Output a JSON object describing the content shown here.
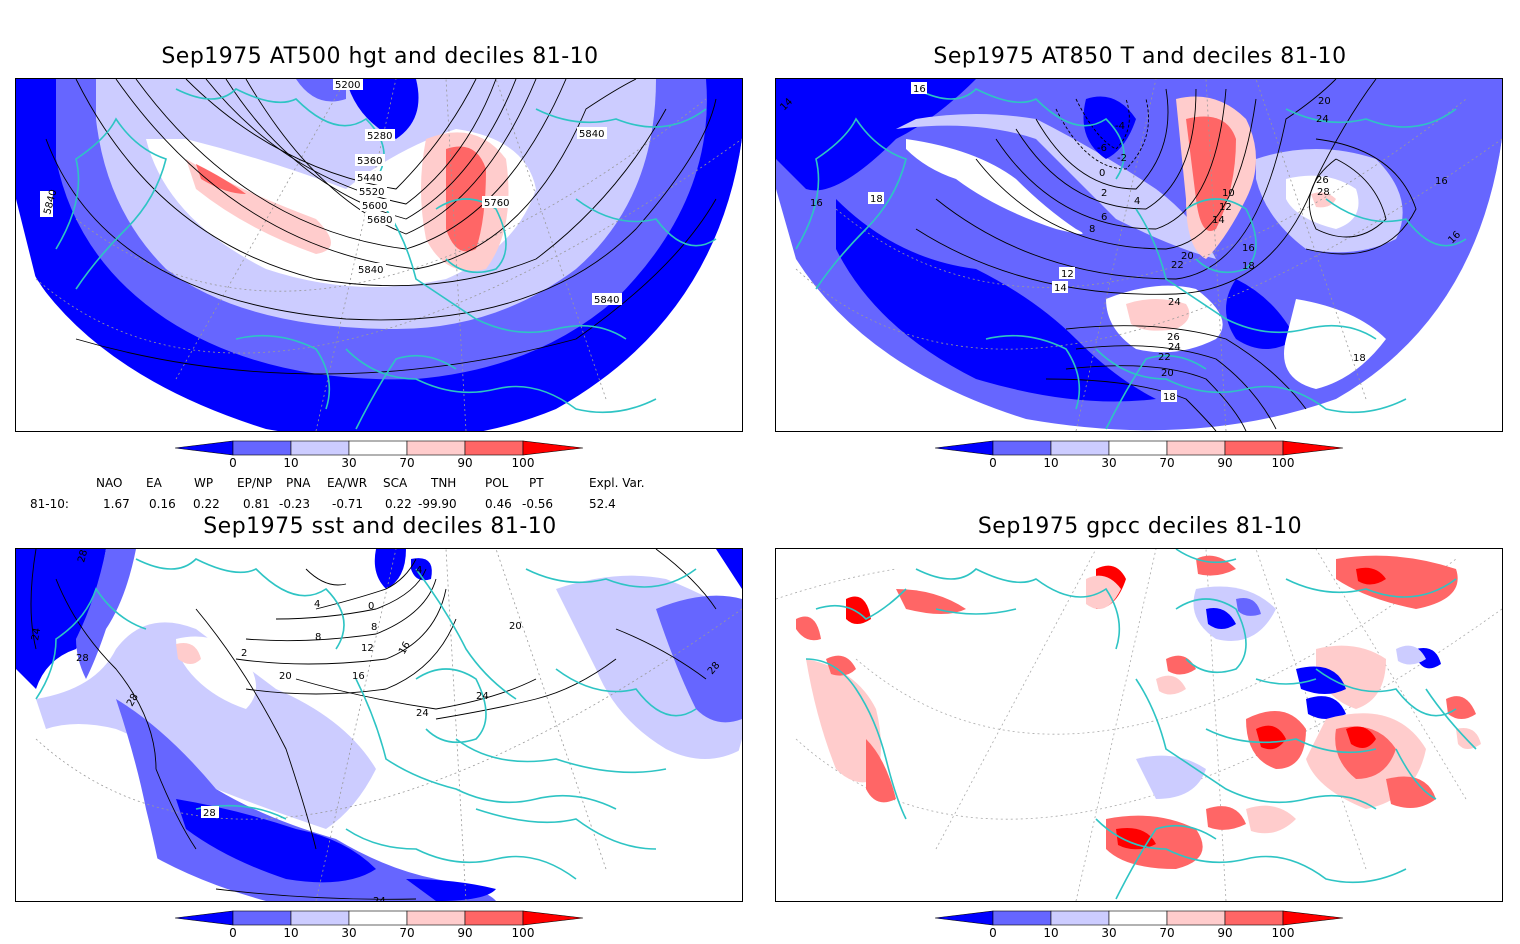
{
  "panels": [
    {
      "id": "p1",
      "title": "Sep1975 AT500 hgt and deciles 81-10",
      "contour_labels": [
        "5200",
        "5280",
        "5360",
        "5440",
        "5520",
        "5600",
        "5680",
        "5840",
        "5760",
        "5840",
        "5840",
        "5840"
      ]
    },
    {
      "id": "p2",
      "title": "Sep1975 AT850 T and deciles 81-10",
      "contour_labels": [
        "14",
        "16",
        "16",
        "18",
        "-6",
        "-4",
        "-2",
        "0",
        "2",
        "4",
        "6",
        "8",
        "10",
        "12",
        "14",
        "12",
        "14",
        "16",
        "18",
        "20",
        "22",
        "24",
        "26",
        "28",
        "26",
        "24",
        "22",
        "20",
        "18",
        "16",
        "16",
        "18",
        "20",
        "24"
      ]
    },
    {
      "id": "p3",
      "title": "Sep1975 sst and deciles 81-10",
      "contour_labels": [
        "28",
        "24",
        "28",
        "28",
        "4",
        "0",
        "4",
        "8",
        "12",
        "16",
        "20",
        "2",
        "8",
        "16",
        "20",
        "24",
        "24",
        "28",
        "28",
        "24"
      ]
    },
    {
      "id": "p4",
      "title": "Sep1975 gpcc deciles 81-10",
      "contour_labels": []
    }
  ],
  "colorbar": {
    "labels": [
      "0",
      "10",
      "30",
      "70",
      "90",
      "100"
    ],
    "colors": {
      "deep_blue": "#0000ff",
      "mid_blue": "#6666ff",
      "light_blue": "#ccccff",
      "white": "#ffffff",
      "light_red": "#ffcccc",
      "mid_red": "#ff6666",
      "deep_red": "#ff0000"
    }
  },
  "teleconnections": {
    "headers": [
      "NAO",
      "EA",
      "WP",
      "EP/NP",
      "PNA",
      "EA/WR",
      "SCA",
      "TNH",
      "POL",
      "PT",
      "Expl. Var."
    ],
    "row_label": "81-10:",
    "values": [
      "1.67",
      "0.16",
      "0.22",
      "0.81",
      "-0.23",
      "-0.71",
      "0.22",
      "-99.90",
      "0.46",
      "-0.56",
      "52.4"
    ]
  },
  "map_colors": {
    "coast": "#2ec4c4",
    "grid": "#999999"
  }
}
